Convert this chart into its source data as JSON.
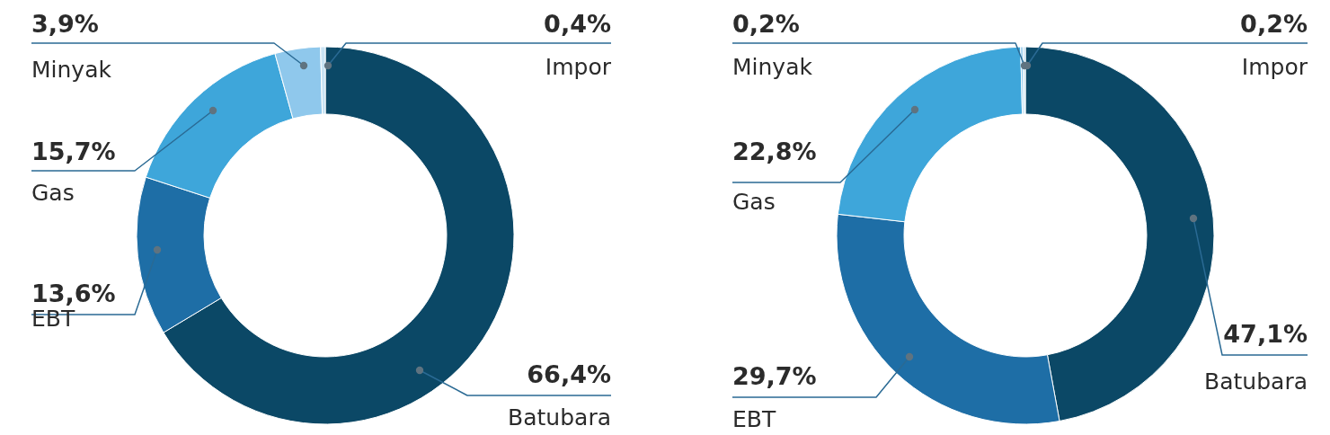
{
  "chart_data": [
    {
      "type": "donut",
      "categories": [
        "Batubara",
        "EBT",
        "Gas",
        "Minyak",
        "Impor"
      ],
      "values": [
        66.4,
        13.6,
        15.7,
        3.9,
        0.4
      ],
      "value_labels": [
        "66,4%",
        "13,6%",
        "15,7%",
        "3,9%",
        "0,4%"
      ],
      "colors": [
        "#0b4866",
        "#1e6ea6",
        "#3ea6da",
        "#8fc8ec",
        "#c9e3f3"
      ],
      "legend": false
    },
    {
      "type": "donut",
      "categories": [
        "Batubara",
        "EBT",
        "Gas",
        "Minyak",
        "Impor"
      ],
      "values": [
        47.1,
        29.7,
        22.8,
        0.2,
        0.2
      ],
      "value_labels": [
        "47,1%",
        "29,7%",
        "22,8%",
        "0,2%",
        "0,2%"
      ],
      "colors": [
        "#0b4866",
        "#1e6ea6",
        "#3ea6da",
        "#8fc8ec",
        "#c9e3f3"
      ],
      "legend": false
    }
  ]
}
